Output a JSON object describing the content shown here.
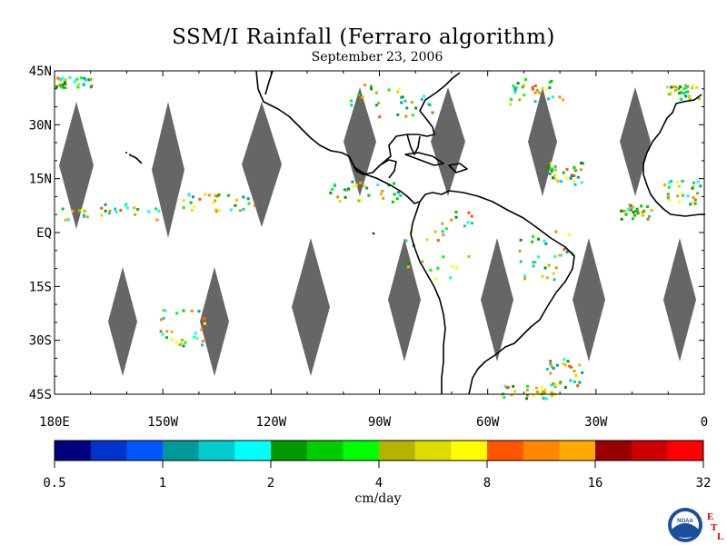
{
  "title": "SSM/I Rainfall (Ferraro algorithm)",
  "subtitle": "September 23, 2006",
  "map": {
    "lon_range": [
      -180,
      0
    ],
    "lat_range": [
      -45,
      45
    ],
    "lat_ticks": [
      {
        "v": 45,
        "label": "45N"
      },
      {
        "v": 30,
        "label": "30N"
      },
      {
        "v": 15,
        "label": "15N"
      },
      {
        "v": 0,
        "label": "EQ"
      },
      {
        "v": -15,
        "label": "15S"
      },
      {
        "v": -30,
        "label": "30S"
      },
      {
        "v": -45,
        "label": "45S"
      }
    ],
    "lon_ticks": [
      {
        "v": -180,
        "label": "180E"
      },
      {
        "v": -150,
        "label": "150W"
      },
      {
        "v": -120,
        "label": "120W"
      },
      {
        "v": -90,
        "label": "90W"
      },
      {
        "v": -60,
        "label": "60W"
      },
      {
        "v": -30,
        "label": "30W"
      },
      {
        "v": 0,
        "label": "0"
      }
    ],
    "no_data_color": "#666666",
    "coastline_color": "#000000"
  },
  "colorbar": {
    "units": "cm/day",
    "colors": [
      "#00007f",
      "#0033cc",
      "#0055ff",
      "#009999",
      "#00cccc",
      "#00ffff",
      "#009900",
      "#00cc00",
      "#00ff00",
      "#b3b300",
      "#dddd00",
      "#ffff00",
      "#ff5500",
      "#ff8800",
      "#ffaa00",
      "#990000",
      "#cc0000",
      "#ff0000"
    ],
    "labels": [
      "0.5",
      "1",
      "2",
      "4",
      "8",
      "16",
      "32"
    ]
  },
  "logo": {
    "text": "NOAA",
    "side_letters": [
      "E",
      "T",
      "L"
    ]
  }
}
